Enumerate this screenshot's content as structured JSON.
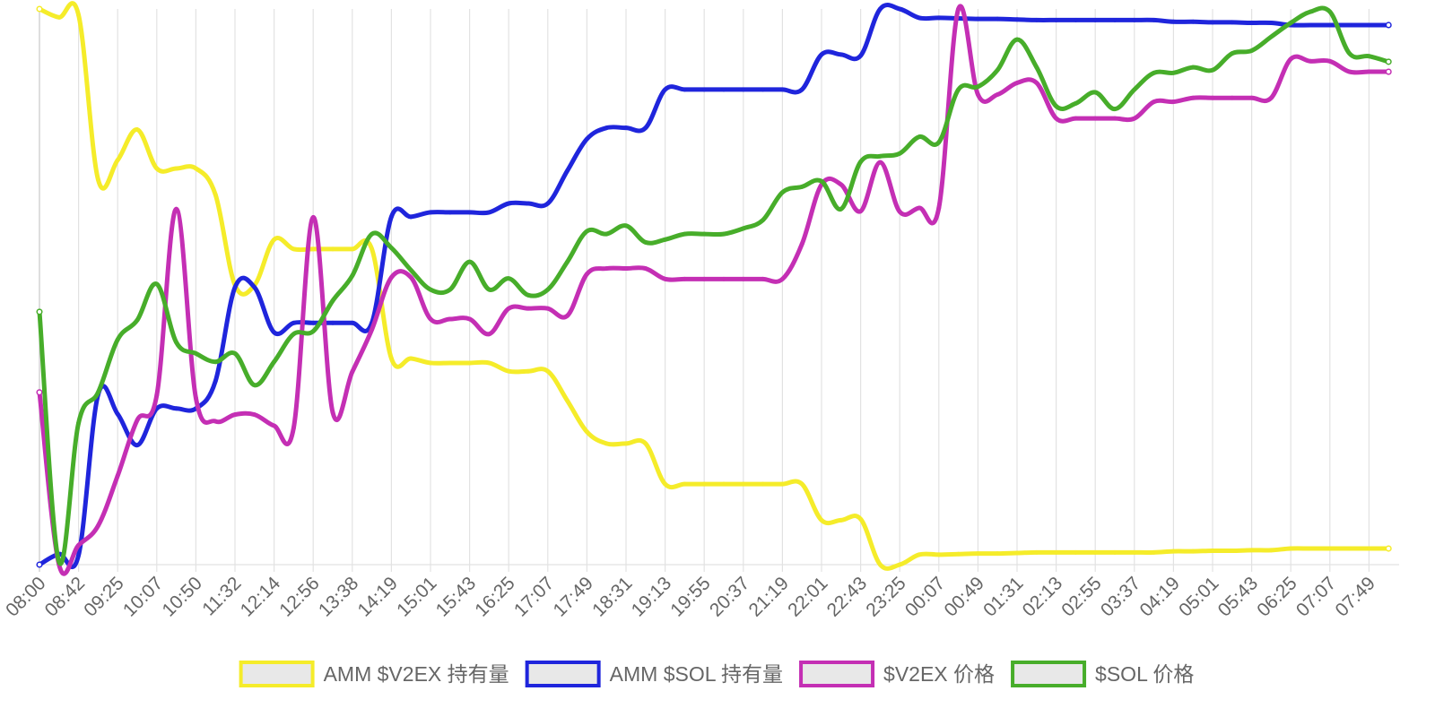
{
  "chart_data": {
    "type": "line",
    "title": "",
    "xlabel": "",
    "ylabel": "",
    "grid": "vertical",
    "legend_position": "bottom",
    "x_tick_labels": [
      "08:00",
      "08:42",
      "09:25",
      "10:07",
      "10:50",
      "11:32",
      "12:14",
      "12:56",
      "13:38",
      "14:19",
      "15:01",
      "15:43",
      "16:25",
      "17:07",
      "17:49",
      "18:31",
      "19:13",
      "19:55",
      "20:37",
      "21:19",
      "22:01",
      "22:43",
      "23:25",
      "00:07",
      "00:49",
      "01:31",
      "02:13",
      "02:55",
      "03:37",
      "04:19",
      "05:01",
      "05:43",
      "06:25",
      "07:07",
      "07:49"
    ],
    "ylim": [
      0,
      100
    ],
    "series": [
      {
        "name": "AMM $V2EX 持有量",
        "color": "#f5ec2a",
        "points": [
          [
            0,
            100
          ],
          [
            0.5,
            98.5
          ],
          [
            1,
            98.9
          ],
          [
            1.5,
            69.3
          ],
          [
            2,
            72.8
          ],
          [
            2.5,
            78.3
          ],
          [
            3,
            71.3
          ],
          [
            3.5,
            71.3
          ],
          [
            4,
            71.3
          ],
          [
            4.5,
            66.6
          ],
          [
            5,
            50.3
          ],
          [
            5.5,
            50.3
          ],
          [
            6,
            58.5
          ],
          [
            6.5,
            56.8
          ],
          [
            7,
            56.8
          ],
          [
            7.5,
            56.8
          ],
          [
            8,
            56.8
          ],
          [
            8.5,
            56.8
          ],
          [
            9,
            37.1
          ],
          [
            9.5,
            37.1
          ],
          [
            10,
            36.3
          ],
          [
            10.5,
            36.3
          ],
          [
            11,
            36.3
          ],
          [
            11.5,
            36.3
          ],
          [
            12,
            34.8
          ],
          [
            12.5,
            34.8
          ],
          [
            13,
            34.8
          ],
          [
            13.5,
            29.5
          ],
          [
            14,
            23.9
          ],
          [
            14.5,
            21.8
          ],
          [
            15,
            21.8
          ],
          [
            15.5,
            21.8
          ],
          [
            16,
            14.5
          ],
          [
            16.5,
            14.5
          ],
          [
            17,
            14.5
          ],
          [
            17.5,
            14.5
          ],
          [
            18,
            14.5
          ],
          [
            18.5,
            14.5
          ],
          [
            19,
            14.5
          ],
          [
            19.5,
            14.5
          ],
          [
            20,
            8.0
          ],
          [
            20.5,
            8.0
          ],
          [
            21,
            8.2
          ],
          [
            21.5,
            0
          ],
          [
            22,
            0
          ],
          [
            22.5,
            1.8
          ],
          [
            23,
            1.8
          ],
          [
            23.5,
            1.9
          ],
          [
            24,
            2.0
          ],
          [
            24.5,
            2.0
          ],
          [
            25,
            2.1
          ],
          [
            25.5,
            2.2
          ],
          [
            26,
            2.2
          ],
          [
            26.5,
            2.2
          ],
          [
            27,
            2.2
          ],
          [
            27.5,
            2.2
          ],
          [
            28,
            2.2
          ],
          [
            28.5,
            2.2
          ],
          [
            29,
            2.4
          ],
          [
            29.5,
            2.4
          ],
          [
            30,
            2.5
          ],
          [
            30.5,
            2.5
          ],
          [
            31,
            2.6
          ],
          [
            31.5,
            2.6
          ],
          [
            32,
            2.9
          ],
          [
            32.5,
            2.9
          ],
          [
            33,
            2.9
          ],
          [
            33.5,
            2.9
          ],
          [
            34,
            2.9
          ],
          [
            34.5,
            2.9
          ]
        ]
      },
      {
        "name": "AMM $SOL 持有量",
        "color": "#1f25dc",
        "points": [
          [
            0,
            0
          ],
          [
            0.5,
            1.9
          ],
          [
            1,
            1.7
          ],
          [
            1.5,
            30.6
          ],
          [
            2,
            27.1
          ],
          [
            2.5,
            21.5
          ],
          [
            3,
            28.1
          ],
          [
            3.5,
            28.1
          ],
          [
            4,
            28.1
          ],
          [
            4.5,
            33.0
          ],
          [
            5,
            49.9
          ],
          [
            5.5,
            49.9
          ],
          [
            6,
            41.8
          ],
          [
            6.5,
            43.5
          ],
          [
            7,
            43.5
          ],
          [
            7.5,
            43.5
          ],
          [
            8,
            43.5
          ],
          [
            8.5,
            43.5
          ],
          [
            9,
            62.6
          ],
          [
            9.5,
            62.6
          ],
          [
            10,
            63.4
          ],
          [
            10.5,
            63.4
          ],
          [
            11,
            63.4
          ],
          [
            11.5,
            63.4
          ],
          [
            12,
            65.0
          ],
          [
            12.5,
            65.0
          ],
          [
            13,
            65.0
          ],
          [
            13.5,
            70.9
          ],
          [
            14,
            76.6
          ],
          [
            14.5,
            78.6
          ],
          [
            15,
            78.6
          ],
          [
            15.5,
            78.6
          ],
          [
            16,
            85.5
          ],
          [
            16.5,
            85.5
          ],
          [
            17,
            85.5
          ],
          [
            17.5,
            85.5
          ],
          [
            18,
            85.5
          ],
          [
            18.5,
            85.5
          ],
          [
            19,
            85.5
          ],
          [
            19.5,
            85.5
          ],
          [
            20,
            91.8
          ],
          [
            20.5,
            91.8
          ],
          [
            21,
            91.6
          ],
          [
            21.5,
            100
          ],
          [
            22,
            100
          ],
          [
            22.5,
            98.4
          ],
          [
            23,
            98.4
          ],
          [
            23.5,
            98.3
          ],
          [
            24,
            98.2
          ],
          [
            24.5,
            98.2
          ],
          [
            25,
            98.1
          ],
          [
            25.5,
            98.0
          ],
          [
            26,
            98.0
          ],
          [
            26.5,
            98.0
          ],
          [
            27,
            98.0
          ],
          [
            27.5,
            98.0
          ],
          [
            28,
            98.0
          ],
          [
            28.5,
            98.0
          ],
          [
            29,
            97.7
          ],
          [
            29.5,
            97.7
          ],
          [
            30,
            97.6
          ],
          [
            30.5,
            97.6
          ],
          [
            31,
            97.5
          ],
          [
            31.5,
            97.5
          ],
          [
            32,
            97.1
          ],
          [
            32.5,
            97.1
          ],
          [
            33,
            97.1
          ],
          [
            33.5,
            97.1
          ],
          [
            34,
            97.1
          ],
          [
            34.5,
            97.1
          ]
        ]
      },
      {
        "name": "$V2EX 价格",
        "color": "#c42fb4",
        "points": [
          [
            0,
            31
          ],
          [
            0.5,
            0
          ],
          [
            1,
            3.5
          ],
          [
            1.5,
            7.0
          ],
          [
            2,
            16.0
          ],
          [
            2.5,
            26.0
          ],
          [
            3,
            30.5
          ],
          [
            3.5,
            64.0
          ],
          [
            4,
            30.0
          ],
          [
            4.5,
            25.8
          ],
          [
            5,
            27.0
          ],
          [
            5.5,
            27.0
          ],
          [
            6,
            25.0
          ],
          [
            6.5,
            24.6
          ],
          [
            7,
            62.5
          ],
          [
            7.5,
            27.4
          ],
          [
            8,
            34.7
          ],
          [
            8.5,
            42.3
          ],
          [
            9,
            51.7
          ],
          [
            9.5,
            51.7
          ],
          [
            10,
            44.2
          ],
          [
            10.5,
            44.2
          ],
          [
            11,
            44.2
          ],
          [
            11.5,
            41.5
          ],
          [
            12,
            46.1
          ],
          [
            12.5,
            46.1
          ],
          [
            13,
            46.1
          ],
          [
            13.5,
            44.8
          ],
          [
            14,
            52.3
          ],
          [
            14.5,
            53.3
          ],
          [
            15,
            53.3
          ],
          [
            15.5,
            53.3
          ],
          [
            16,
            51.4
          ],
          [
            16.5,
            51.4
          ],
          [
            17,
            51.4
          ],
          [
            17.5,
            51.4
          ],
          [
            18,
            51.4
          ],
          [
            18.5,
            51.4
          ],
          [
            19,
            51.4
          ],
          [
            19.5,
            57.7
          ],
          [
            20,
            68.4
          ],
          [
            20.5,
            68.4
          ],
          [
            21,
            63.6
          ],
          [
            21.5,
            72.4
          ],
          [
            22,
            63.5
          ],
          [
            22.5,
            64.2
          ],
          [
            23,
            64.2
          ],
          [
            23.5,
            100
          ],
          [
            24,
            84.6
          ],
          [
            24.5,
            84.6
          ],
          [
            25,
            86.7
          ],
          [
            25.5,
            86.7
          ],
          [
            26,
            80.3
          ],
          [
            26.5,
            80.3
          ],
          [
            27,
            80.3
          ],
          [
            27.5,
            80.3
          ],
          [
            28,
            80.3
          ],
          [
            28.5,
            83.3
          ],
          [
            29,
            83.3
          ],
          [
            29.5,
            84.0
          ],
          [
            30,
            84.0
          ],
          [
            30.5,
            84.0
          ],
          [
            31,
            84.0
          ],
          [
            31.5,
            84.0
          ],
          [
            32,
            91.0
          ],
          [
            32.5,
            90.6
          ],
          [
            33,
            90.6
          ],
          [
            33.5,
            88.7
          ],
          [
            34,
            88.7
          ],
          [
            34.5,
            88.7
          ]
        ]
      },
      {
        "name": "$SOL 价格",
        "color": "#47ad2a",
        "points": [
          [
            0,
            45.5
          ],
          [
            0.5,
            0.5
          ],
          [
            1,
            25.5
          ],
          [
            1.5,
            31.0
          ],
          [
            2,
            40.5
          ],
          [
            2.5,
            44.0
          ],
          [
            3,
            50.5
          ],
          [
            3.5,
            40.0
          ],
          [
            4,
            38.0
          ],
          [
            4.5,
            36.5
          ],
          [
            5,
            38.0
          ],
          [
            5.5,
            32.3
          ],
          [
            6,
            36.5
          ],
          [
            6.5,
            41.5
          ],
          [
            7,
            42.0
          ],
          [
            7.5,
            47.5
          ],
          [
            8,
            52.0
          ],
          [
            8.5,
            59.5
          ],
          [
            9,
            57.0
          ],
          [
            9.5,
            53.0
          ],
          [
            10,
            49.5
          ],
          [
            10.5,
            49.5
          ],
          [
            11,
            54.5
          ],
          [
            11.5,
            49.5
          ],
          [
            12,
            51.5
          ],
          [
            12.5,
            48.5
          ],
          [
            13,
            49.5
          ],
          [
            13.5,
            54.5
          ],
          [
            14,
            60.0
          ],
          [
            14.5,
            59.5
          ],
          [
            15,
            61.0
          ],
          [
            15.5,
            58.0
          ],
          [
            16,
            58.5
          ],
          [
            16.5,
            59.5
          ],
          [
            17,
            59.5
          ],
          [
            17.5,
            59.5
          ],
          [
            18,
            60.5
          ],
          [
            18.5,
            62.0
          ],
          [
            19,
            67.0
          ],
          [
            19.5,
            68.0
          ],
          [
            20,
            69.0
          ],
          [
            20.5,
            64.0
          ],
          [
            21,
            72.5
          ],
          [
            21.5,
            73.5
          ],
          [
            22,
            74.0
          ],
          [
            22.5,
            77.0
          ],
          [
            23,
            76.0
          ],
          [
            23.5,
            85.5
          ],
          [
            24,
            86.0
          ],
          [
            24.5,
            89.0
          ],
          [
            25,
            94.5
          ],
          [
            25.5,
            89.5
          ],
          [
            26,
            82.5
          ],
          [
            26.5,
            83.0
          ],
          [
            27,
            85.0
          ],
          [
            27.5,
            82.0
          ],
          [
            28,
            85.5
          ],
          [
            28.5,
            88.5
          ],
          [
            29,
            88.5
          ],
          [
            29.5,
            89.5
          ],
          [
            30,
            89.0
          ],
          [
            30.5,
            92.0
          ],
          [
            31,
            92.5
          ],
          [
            31.5,
            95.0
          ],
          [
            32,
            97.5
          ],
          [
            32.5,
            99.5
          ],
          [
            33,
            99.5
          ],
          [
            33.5,
            92.0
          ],
          [
            34,
            91.5
          ],
          [
            34.5,
            90.5
          ]
        ]
      }
    ]
  }
}
